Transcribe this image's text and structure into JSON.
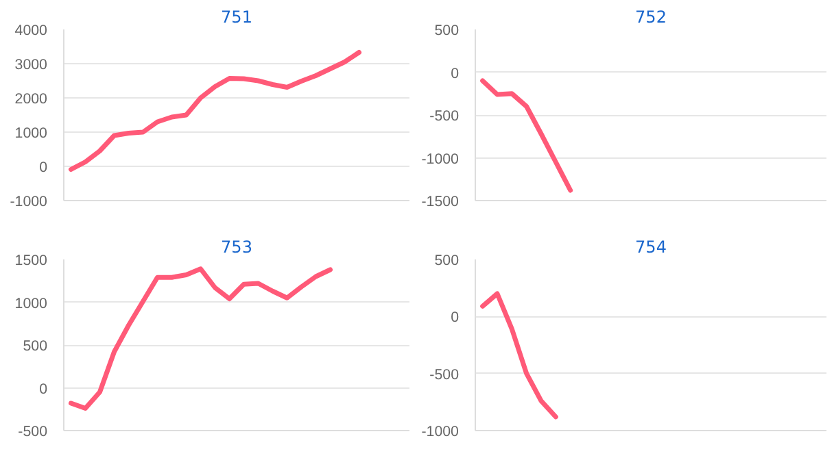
{
  "chart_data": [
    {
      "type": "line",
      "title": "751",
      "categories": [
        null,
        null,
        null,
        null,
        null,
        null,
        null,
        null,
        null,
        null,
        null,
        null,
        null,
        null,
        null,
        null,
        null,
        null,
        null,
        null,
        null,
        null,
        null,
        null
      ],
      "series": [
        {
          "color": "#ff5a78",
          "values": [
            -90,
            130,
            450,
            900,
            970,
            1000,
            1300,
            1440,
            1500,
            2000,
            2330,
            2570,
            2560,
            2500,
            2390,
            2310,
            2490,
            2650,
            2850,
            3050,
            3330,
            null,
            null,
            null
          ]
        }
      ],
      "ylim": [
        -1000,
        4000
      ],
      "yticks": [
        -1000,
        0,
        1000,
        2000,
        3000,
        4000
      ],
      "grid": "y",
      "marker": "none",
      "line_style": "solid",
      "tick_labels": "y"
    },
    {
      "type": "line",
      "title": "752",
      "categories": [
        null,
        null,
        null,
        null,
        null,
        null,
        null,
        null,
        null,
        null,
        null,
        null,
        null,
        null,
        null,
        null,
        null,
        null,
        null,
        null,
        null,
        null,
        null,
        null
      ],
      "series": [
        {
          "color": "#ff5a78",
          "values": [
            -100,
            -260,
            -250,
            -400,
            -720,
            -1050,
            -1380,
            null,
            null,
            null,
            null,
            null,
            null,
            null,
            null,
            null,
            null,
            null,
            null,
            null,
            null,
            null,
            null,
            null
          ]
        }
      ],
      "ylim": [
        -1500,
        500
      ],
      "yticks": [
        -1500,
        -1000,
        -500,
        0,
        500
      ],
      "grid": "y",
      "marker": "none",
      "line_style": "solid",
      "tick_labels": "y"
    },
    {
      "type": "line",
      "title": "753",
      "categories": [
        null,
        null,
        null,
        null,
        null,
        null,
        null,
        null,
        null,
        null,
        null,
        null,
        null,
        null,
        null,
        null,
        null,
        null,
        null,
        null,
        null,
        null,
        null,
        null
      ],
      "series": [
        {
          "color": "#ff5a78",
          "values": [
            -180,
            -240,
            -50,
            420,
            730,
            1010,
            1290,
            1290,
            1320,
            1390,
            1170,
            1040,
            1210,
            1220,
            1130,
            1050,
            1180,
            1300,
            1380,
            null,
            null,
            null,
            null,
            null
          ]
        }
      ],
      "ylim": [
        -500,
        1500
      ],
      "yticks": [
        -500,
        0,
        500,
        1000,
        1500
      ],
      "grid": "y",
      "marker": "none",
      "line_style": "solid",
      "tick_labels": "y"
    },
    {
      "type": "line",
      "title": "754",
      "categories": [
        null,
        null,
        null,
        null,
        null,
        null,
        null,
        null,
        null,
        null,
        null,
        null,
        null,
        null,
        null,
        null,
        null,
        null,
        null,
        null,
        null,
        null,
        null,
        null
      ],
      "series": [
        {
          "color": "#ff5a78",
          "values": [
            90,
            200,
            -110,
            -500,
            -740,
            -880,
            null,
            null,
            null,
            null,
            null,
            null,
            null,
            null,
            null,
            null,
            null,
            null,
            null,
            null,
            null,
            null,
            null,
            null
          ]
        }
      ],
      "ylim": [
        -1000,
        500
      ],
      "yticks": [
        -1000,
        -500,
        0,
        500
      ],
      "grid": "y",
      "marker": "none",
      "line_style": "solid",
      "tick_labels": "y"
    }
  ]
}
